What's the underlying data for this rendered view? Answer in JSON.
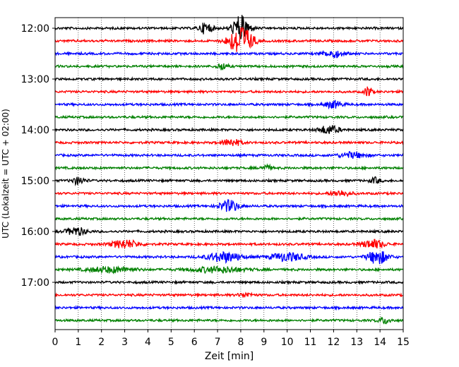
{
  "chart_data": {
    "type": "line",
    "subtype": "seismogram-helicorder",
    "xlabel": "Zeit  [min]",
    "ylabel": "UTC (Lokalzeit = UTC + 02:00)",
    "xlim": [
      0,
      15
    ],
    "x_ticks": [
      "0",
      "1",
      "2",
      "3",
      "4",
      "5",
      "6",
      "7",
      "8",
      "9",
      "10",
      "11",
      "12",
      "13",
      "14",
      "15"
    ],
    "y_ticks": [
      "12:00",
      "13:00",
      "14:00",
      "15:00",
      "16:00",
      "17:00"
    ],
    "vertical_grid": true,
    "grid_style": "dotted",
    "trace_colors": [
      "#000000",
      "#ff0000",
      "#0000ff",
      "#008000"
    ],
    "trace_rows": [
      "12:00",
      "12:15",
      "12:30",
      "12:45",
      "13:00",
      "13:15",
      "13:30",
      "13:45",
      "14:00",
      "14:15",
      "14:30",
      "14:45",
      "15:00",
      "15:15",
      "15:30",
      "15:45",
      "16:00",
      "16:15",
      "16:30",
      "16:45",
      "17:00",
      "17:15",
      "17:30",
      "17:45"
    ],
    "events": [
      {
        "row": 0,
        "minute": 6.5,
        "amplitude": 8,
        "duration": 0.4
      },
      {
        "row": 0,
        "minute": 8.0,
        "amplitude": 18,
        "duration": 0.5
      },
      {
        "row": 1,
        "minute": 8.0,
        "amplitude": 22,
        "duration": 0.7
      },
      {
        "row": 2,
        "minute": 12.0,
        "amplitude": 5,
        "duration": 0.6
      },
      {
        "row": 3,
        "minute": 7.2,
        "amplitude": 5,
        "duration": 0.3
      },
      {
        "row": 5,
        "minute": 13.5,
        "amplitude": 9,
        "duration": 0.2
      },
      {
        "row": 6,
        "minute": 12.0,
        "amplitude": 5,
        "duration": 0.5
      },
      {
        "row": 8,
        "minute": 11.8,
        "amplitude": 6,
        "duration": 0.6
      },
      {
        "row": 9,
        "minute": 7.6,
        "amplitude": 5,
        "duration": 0.6
      },
      {
        "row": 10,
        "minute": 12.8,
        "amplitude": 4,
        "duration": 0.8
      },
      {
        "row": 11,
        "minute": 9.1,
        "amplitude": 4,
        "duration": 0.3
      },
      {
        "row": 12,
        "minute": 1.0,
        "amplitude": 5,
        "duration": 0.4
      },
      {
        "row": 12,
        "minute": 13.8,
        "amplitude": 4,
        "duration": 0.3
      },
      {
        "row": 13,
        "minute": 12.3,
        "amplitude": 4,
        "duration": 0.6
      },
      {
        "row": 14,
        "minute": 7.5,
        "amplitude": 8,
        "duration": 0.6
      },
      {
        "row": 16,
        "minute": 0.9,
        "amplitude": 6,
        "duration": 0.6
      },
      {
        "row": 17,
        "minute": 3.0,
        "amplitude": 6,
        "duration": 0.8
      },
      {
        "row": 17,
        "minute": 13.7,
        "amplitude": 6,
        "duration": 0.7
      },
      {
        "row": 18,
        "minute": 7.3,
        "amplitude": 7,
        "duration": 1.0
      },
      {
        "row": 18,
        "minute": 10.0,
        "amplitude": 6,
        "duration": 1.0
      },
      {
        "row": 18,
        "minute": 13.9,
        "amplitude": 10,
        "duration": 0.6
      },
      {
        "row": 19,
        "minute": 2.4,
        "amplitude": 4,
        "duration": 1.4
      },
      {
        "row": 19,
        "minute": 7.0,
        "amplitude": 4,
        "duration": 1.6
      },
      {
        "row": 21,
        "minute": 8.2,
        "amplitude": 3,
        "duration": 0.4
      },
      {
        "row": 23,
        "minute": 14.2,
        "amplitude": 4,
        "duration": 0.4
      }
    ]
  }
}
